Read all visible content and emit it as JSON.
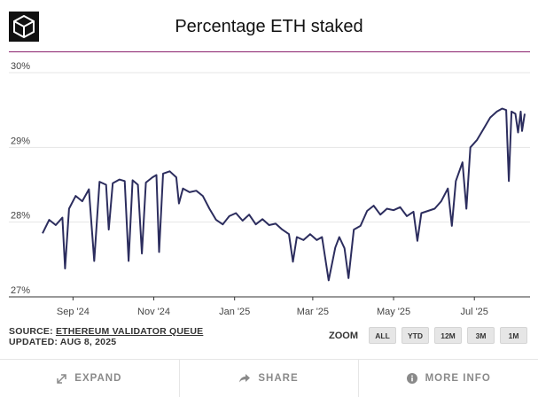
{
  "header": {
    "title": "Percentage ETH staked",
    "logo_icon": "cube-logo-icon",
    "accent_color": "#8a1f6d"
  },
  "chart_data": {
    "type": "line",
    "title": "Percentage ETH staked",
    "xlabel": "",
    "ylabel": "",
    "ylim": [
      27,
      30
    ],
    "yticks": [
      "27%",
      "28%",
      "29%",
      "30%"
    ],
    "xticks": [
      "Sep '24",
      "Nov '24",
      "Jan '25",
      "Mar '25",
      "May '25",
      "Jul '25"
    ],
    "x_range": [
      "2024-08-09",
      "2025-08-08"
    ],
    "grid": "horizontal",
    "line_color": "#2c2d5e",
    "series": [
      {
        "name": "",
        "points": [
          [
            "2024-08-09",
            27.85
          ],
          [
            "2024-08-14",
            28.03
          ],
          [
            "2024-08-19",
            27.96
          ],
          [
            "2024-08-24",
            28.06
          ],
          [
            "2024-08-26",
            27.38
          ],
          [
            "2024-08-29",
            28.18
          ],
          [
            "2024-09-03",
            28.35
          ],
          [
            "2024-09-08",
            28.28
          ],
          [
            "2024-09-13",
            28.44
          ],
          [
            "2024-09-17",
            27.48
          ],
          [
            "2024-09-21",
            28.54
          ],
          [
            "2024-09-26",
            28.5
          ],
          [
            "2024-09-28",
            27.9
          ],
          [
            "2024-10-01",
            28.52
          ],
          [
            "2024-10-06",
            28.57
          ],
          [
            "2024-10-10",
            28.55
          ],
          [
            "2024-10-13",
            27.48
          ],
          [
            "2024-10-16",
            28.56
          ],
          [
            "2024-10-20",
            28.5
          ],
          [
            "2024-10-23",
            27.58
          ],
          [
            "2024-10-26",
            28.53
          ],
          [
            "2024-10-31",
            28.6
          ],
          [
            "2024-11-03",
            28.63
          ],
          [
            "2024-11-05",
            27.6
          ],
          [
            "2024-11-08",
            28.65
          ],
          [
            "2024-11-13",
            28.68
          ],
          [
            "2024-11-18",
            28.6
          ],
          [
            "2024-11-20",
            28.25
          ],
          [
            "2024-11-23",
            28.45
          ],
          [
            "2024-11-28",
            28.4
          ],
          [
            "2024-12-03",
            28.42
          ],
          [
            "2024-12-08",
            28.35
          ],
          [
            "2024-12-13",
            28.18
          ],
          [
            "2024-12-18",
            28.03
          ],
          [
            "2024-12-23",
            27.97
          ],
          [
            "2024-12-28",
            28.08
          ],
          [
            "2025-01-02",
            28.12
          ],
          [
            "2025-01-07",
            28.02
          ],
          [
            "2025-01-12",
            28.1
          ],
          [
            "2025-01-17",
            27.97
          ],
          [
            "2025-01-22",
            28.04
          ],
          [
            "2025-01-27",
            27.96
          ],
          [
            "2025-02-01",
            27.98
          ],
          [
            "2025-02-06",
            27.9
          ],
          [
            "2025-02-11",
            27.84
          ],
          [
            "2025-02-14",
            27.47
          ],
          [
            "2025-02-17",
            27.8
          ],
          [
            "2025-02-22",
            27.76
          ],
          [
            "2025-02-27",
            27.84
          ],
          [
            "2025-03-04",
            27.76
          ],
          [
            "2025-03-08",
            27.8
          ],
          [
            "2025-03-13",
            27.22
          ],
          [
            "2025-03-18",
            27.66
          ],
          [
            "2025-03-21",
            27.8
          ],
          [
            "2025-03-25",
            27.65
          ],
          [
            "2025-03-28",
            27.25
          ],
          [
            "2025-04-01",
            27.9
          ],
          [
            "2025-04-06",
            27.95
          ],
          [
            "2025-04-11",
            28.15
          ],
          [
            "2025-04-16",
            28.22
          ],
          [
            "2025-04-21",
            28.1
          ],
          [
            "2025-04-26",
            28.18
          ],
          [
            "2025-05-01",
            28.16
          ],
          [
            "2025-05-06",
            28.2
          ],
          [
            "2025-05-11",
            28.08
          ],
          [
            "2025-05-16",
            28.14
          ],
          [
            "2025-05-19",
            27.75
          ],
          [
            "2025-05-22",
            28.12
          ],
          [
            "2025-05-27",
            28.15
          ],
          [
            "2025-06-01",
            28.18
          ],
          [
            "2025-06-06",
            28.28
          ],
          [
            "2025-06-11",
            28.45
          ],
          [
            "2025-06-14",
            27.95
          ],
          [
            "2025-06-17",
            28.55
          ],
          [
            "2025-06-22",
            28.8
          ],
          [
            "2025-06-25",
            28.18
          ],
          [
            "2025-06-28",
            29.0
          ],
          [
            "2025-07-03",
            29.1
          ],
          [
            "2025-07-08",
            29.25
          ],
          [
            "2025-07-13",
            29.4
          ],
          [
            "2025-07-18",
            29.48
          ],
          [
            "2025-07-22",
            29.52
          ],
          [
            "2025-07-25",
            29.5
          ],
          [
            "2025-07-27",
            28.55
          ],
          [
            "2025-07-29",
            29.48
          ],
          [
            "2025-08-01",
            29.45
          ],
          [
            "2025-08-03",
            29.2
          ],
          [
            "2025-08-05",
            29.48
          ],
          [
            "2025-08-06",
            29.22
          ],
          [
            "2025-08-08",
            29.45
          ]
        ]
      }
    ]
  },
  "footer": {
    "source_prefix": "SOURCE: ",
    "source_link": "ETHEREUM VALIDATOR QUEUE",
    "updated": "UPDATED: AUG 8, 2025"
  },
  "zoom": {
    "label": "ZOOM",
    "buttons": [
      "ALL",
      "YTD",
      "12M",
      "3M",
      "1M"
    ]
  },
  "actions": {
    "expand": "EXPAND",
    "share": "SHARE",
    "more_info": "MORE INFO",
    "expand_icon": "expand-arrows-icon",
    "share_icon": "share-arrow-icon",
    "info_icon": "info-icon"
  }
}
